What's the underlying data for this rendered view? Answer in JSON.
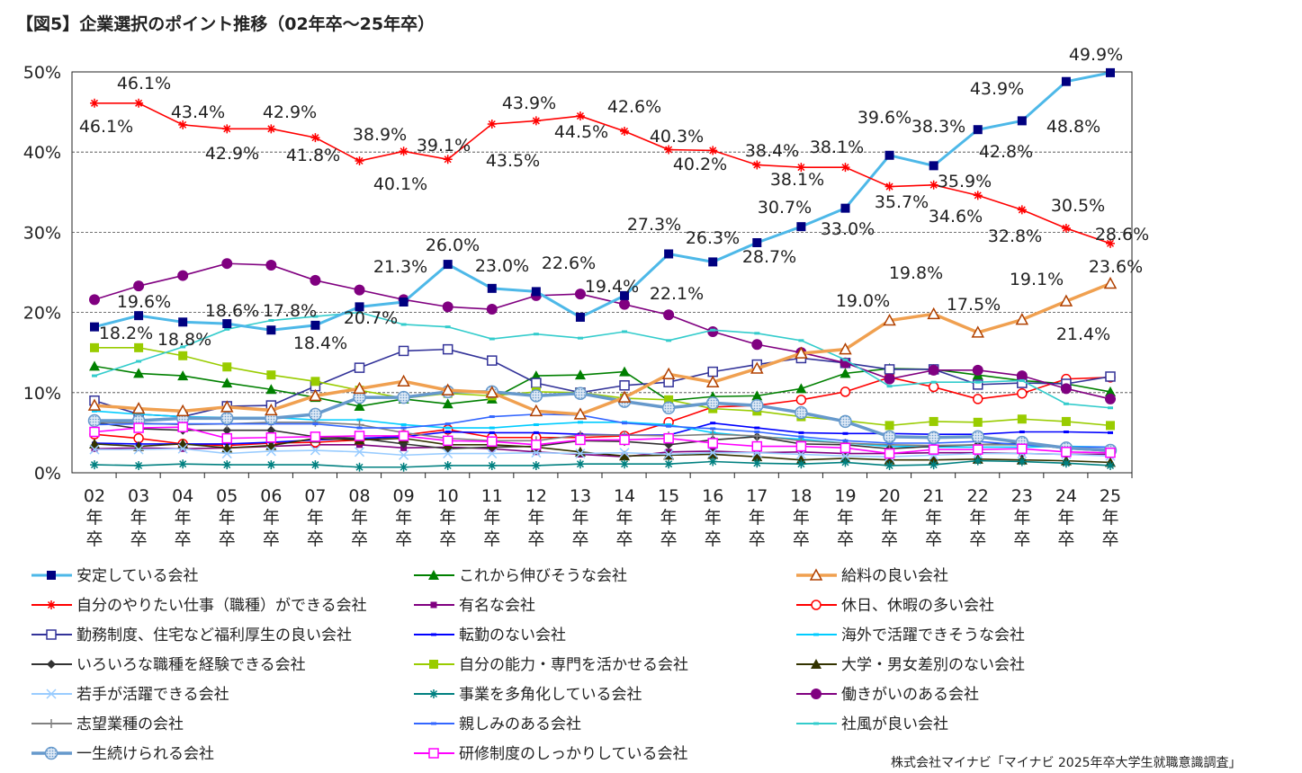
{
  "title": "【図5】企業選択のポイント推移（02年卒～25年卒）",
  "source": "株式会社マイナビ「マイナビ 2025年卒大学生就職意識調査」",
  "chart_data": {
    "type": "line",
    "title": "【図5】企業選択のポイント推移（02年卒～25年卒）",
    "categories": [
      "02",
      "03",
      "04",
      "05",
      "06",
      "07",
      "08",
      "09",
      "10",
      "11",
      "12",
      "13",
      "14",
      "15",
      "16",
      "17",
      "18",
      "19",
      "20",
      "21",
      "22",
      "23",
      "24",
      "25"
    ],
    "category_suffix": [
      "年",
      "卒"
    ],
    "ylim": [
      0,
      50
    ],
    "yticks": [
      "0%",
      "10%",
      "20%",
      "30%",
      "40%",
      "50%"
    ],
    "grid": "horizontal dashed",
    "legend": "bottom",
    "series": [
      {
        "name": "安定している会社",
        "color": "#4db8e8",
        "marker_color": "#000080",
        "marker": "square-filled",
        "labels": "all",
        "values": [
          18.2,
          19.6,
          18.8,
          18.6,
          17.8,
          18.4,
          20.7,
          21.3,
          26.0,
          23.0,
          22.6,
          19.4,
          22.1,
          27.3,
          26.3,
          28.7,
          30.7,
          33.0,
          39.6,
          38.3,
          42.8,
          43.9,
          48.8,
          49.9
        ]
      },
      {
        "name": "これから伸びそうな会社",
        "color": "#008000",
        "marker_color": "#008000",
        "marker": "triangle-filled",
        "values": [
          13.3,
          12.4,
          12.1,
          11.2,
          10.4,
          9.4,
          8.3,
          9.2,
          8.6,
          9.2,
          12.1,
          12.2,
          12.6,
          9.0,
          9.5,
          9.6,
          10.5,
          12.4,
          13.0,
          12.9,
          12.2,
          11.5,
          11.1,
          10.1
        ]
      },
      {
        "name": "給料の良い会社",
        "color": "#f0a050",
        "marker_color": "#b04000",
        "marker": "triangle-open",
        "labels": "20-25",
        "values": [
          8.4,
          8.0,
          7.7,
          8.2,
          7.8,
          9.6,
          10.5,
          11.4,
          10.3,
          10.0,
          7.7,
          7.3,
          9.4,
          12.3,
          11.3,
          13.0,
          14.9,
          15.4,
          19.0,
          19.8,
          17.5,
          19.1,
          21.4,
          23.6
        ]
      },
      {
        "name": "自分のやりたい仕事（職種）ができる会社",
        "color": "#ff0000",
        "marker_color": "#ff0000",
        "marker": "star",
        "labels": "all",
        "values": [
          46.1,
          46.1,
          43.4,
          42.9,
          42.9,
          41.8,
          38.9,
          40.1,
          39.1,
          43.5,
          43.9,
          44.5,
          42.6,
          40.3,
          40.2,
          38.4,
          38.1,
          38.1,
          35.7,
          35.9,
          34.6,
          32.8,
          30.5,
          28.6
        ]
      },
      {
        "name": "有名な会社",
        "color": "#800080",
        "marker_color": "#800080",
        "marker": "square-small",
        "values": [
          3.0,
          3.1,
          3.0,
          3.1,
          3.3,
          3.5,
          3.5,
          3.1,
          3.2,
          3.0,
          2.6,
          2.3,
          2.0,
          2.6,
          2.7,
          2.5,
          2.6,
          2.4,
          2.4,
          2.5,
          2.5,
          2.4,
          2.3,
          2.3
        ]
      },
      {
        "name": "休日、休暇の多い会社",
        "color": "#ff0000",
        "marker_color": "#ff0000",
        "marker": "circle-open",
        "values": [
          4.8,
          4.3,
          3.6,
          3.4,
          3.7,
          3.8,
          4.1,
          4.7,
          5.4,
          4.4,
          4.4,
          4.4,
          4.6,
          6.3,
          8.2,
          8.4,
          9.1,
          10.1,
          11.9,
          10.7,
          9.2,
          9.9,
          11.7,
          11.9
        ]
      },
      {
        "name": "勤務制度、住宅など福利厚生の良い会社",
        "color": "#333399",
        "marker_color": "#333399",
        "marker": "square-open",
        "values": [
          9.0,
          7.3,
          7.0,
          8.3,
          8.4,
          10.8,
          13.1,
          15.2,
          15.4,
          14.0,
          11.2,
          10.0,
          10.9,
          11.3,
          12.6,
          13.5,
          14.3,
          13.7,
          12.9,
          12.9,
          11.0,
          11.2,
          11.1,
          12.0
        ]
      },
      {
        "name": "転勤のない会社",
        "color": "#0000ff",
        "marker_color": "#0000ff",
        "marker": "dash",
        "values": [
          3.7,
          3.6,
          3.6,
          3.6,
          3.8,
          4.1,
          4.3,
          4.5,
          5.1,
          5.0,
          5.0,
          4.8,
          4.7,
          4.7,
          6.2,
          5.6,
          5.0,
          4.9,
          4.9,
          4.8,
          4.8,
          5.1,
          5.1,
          5.0
        ]
      },
      {
        "name": "海外で活躍できそうな会社",
        "color": "#00ccff",
        "marker_color": "#00ccff",
        "marker": "dash",
        "values": [
          7.7,
          7.3,
          7.0,
          6.9,
          6.9,
          6.6,
          6.6,
          6.0,
          5.6,
          5.6,
          6.0,
          6.3,
          6.3,
          6.0,
          5.0,
          4.5,
          4.2,
          3.7,
          3.3,
          3.2,
          3.2,
          3.2,
          3.3,
          3.2
        ]
      },
      {
        "name": "いろいろな職種を経験できる会社",
        "color": "#333333",
        "marker_color": "#333333",
        "marker": "diamond",
        "values": [
          6.3,
          5.5,
          5.3,
          5.3,
          5.3,
          4.5,
          4.3,
          3.6,
          3.0,
          3.2,
          3.3,
          4.0,
          3.9,
          3.5,
          4.1,
          4.5,
          3.6,
          3.5,
          3.0,
          3.3,
          3.5,
          3.7,
          3.0,
          2.7
        ]
      },
      {
        "name": "自分の能力・専門を活かせる会社",
        "color": "#99cc00",
        "marker_color": "#99cc00",
        "marker": "square-filled",
        "values": [
          15.6,
          15.6,
          14.6,
          13.2,
          12.2,
          11.4,
          10.3,
          9.3,
          9.9,
          9.6,
          10.1,
          10.0,
          9.3,
          9.1,
          8.0,
          7.7,
          7.0,
          6.5,
          5.9,
          6.4,
          6.3,
          6.7,
          6.4,
          5.9
        ]
      },
      {
        "name": "大学・男女差別のない会社",
        "color": "#333300",
        "marker_color": "#333300",
        "marker": "triangle-filled",
        "values": [
          3.6,
          3.3,
          3.6,
          3.1,
          3.4,
          4.3,
          4.1,
          4.3,
          3.5,
          3.5,
          3.2,
          2.6,
          2.1,
          2.2,
          2.3,
          2.0,
          1.6,
          1.8,
          1.6,
          1.6,
          1.7,
          1.6,
          1.5,
          1.3
        ]
      },
      {
        "name": "若手が活躍できる会社",
        "color": "#99ccff",
        "marker_color": "#99ccff",
        "marker": "x",
        "values": [
          2.9,
          2.9,
          3.0,
          2.4,
          2.7,
          2.8,
          2.6,
          2.2,
          2.4,
          2.4,
          2.5,
          2.4,
          2.5,
          2.3,
          2.5,
          2.5,
          2.3,
          2.1,
          2.0,
          2.2,
          2.4,
          2.4,
          2.3,
          2.1
        ]
      },
      {
        "name": "事業を多角化している会社",
        "color": "#008080",
        "marker_color": "#008080",
        "marker": "star",
        "values": [
          1.0,
          0.9,
          1.1,
          1.0,
          1.0,
          1.0,
          0.7,
          0.7,
          0.9,
          0.9,
          0.9,
          1.1,
          1.1,
          1.1,
          1.4,
          1.2,
          1.1,
          1.3,
          0.9,
          1.0,
          1.5,
          1.4,
          1.2,
          0.9
        ]
      },
      {
        "name": "働きがいのある会社",
        "color": "#800080",
        "marker_color": "#800080",
        "marker": "circle-filled",
        "values": [
          21.6,
          23.3,
          24.6,
          26.1,
          25.9,
          24.0,
          22.8,
          21.6,
          20.7,
          20.4,
          22.1,
          22.3,
          21.0,
          19.7,
          17.6,
          16.0,
          15.0,
          13.7,
          11.7,
          12.8,
          12.8,
          12.1,
          10.5,
          9.2
        ]
      },
      {
        "name": "志望業種の会社",
        "color": "#808080",
        "marker_color": "#808080",
        "marker": "plus",
        "values": [
          6.3,
          6.2,
          6.0,
          6.1,
          6.3,
          6.3,
          6.0,
          5.0,
          4.3,
          4.0,
          4.0,
          4.7,
          4.7,
          4.6,
          4.8,
          4.6,
          4.0,
          3.7,
          3.5,
          3.4,
          3.5,
          3.5,
          3.1,
          2.9
        ]
      },
      {
        "name": "親しみのある会社",
        "color": "#3366ff",
        "marker_color": "#3366ff",
        "marker": "dash",
        "values": [
          6.0,
          6.1,
          6.1,
          6.1,
          6.1,
          6.1,
          5.6,
          5.6,
          6.1,
          7.0,
          7.3,
          7.2,
          6.2,
          5.8,
          5.5,
          5.1,
          4.5,
          4.0,
          3.7,
          3.7,
          3.9,
          3.5,
          3.2,
          3.2
        ]
      },
      {
        "name": "社風が良い会社",
        "color": "#33cccc",
        "marker_color": "#33cccc",
        "marker": "dash",
        "values": [
          12.1,
          13.9,
          15.7,
          17.9,
          19.0,
          19.5,
          20.0,
          18.5,
          18.2,
          16.7,
          17.3,
          16.8,
          17.6,
          16.5,
          17.8,
          17.4,
          16.5,
          14.1,
          10.8,
          11.3,
          11.3,
          11.5,
          8.6,
          8.1
        ]
      },
      {
        "name": "一生続けられる会社",
        "color": "#6699cc",
        "marker_color": "#6699cc",
        "marker": "circle-pattern",
        "values": [
          6.5,
          6.5,
          6.8,
          6.8,
          6.8,
          7.3,
          9.4,
          9.4,
          10.1,
          10.1,
          9.6,
          9.9,
          8.9,
          8.1,
          8.7,
          8.4,
          7.5,
          6.4,
          4.5,
          4.4,
          4.5,
          3.8,
          3.1,
          2.8
        ]
      },
      {
        "name": "研修制度のしっかりしている会社",
        "color": "#ff00ff",
        "marker_color": "#ff00ff",
        "marker": "square-open",
        "values": [
          5.1,
          5.6,
          5.7,
          4.3,
          4.4,
          4.5,
          4.6,
          4.6,
          4.0,
          3.9,
          3.5,
          4.1,
          4.1,
          4.3,
          3.7,
          3.3,
          3.3,
          3.1,
          2.4,
          2.9,
          2.9,
          3.0,
          2.6,
          2.5
        ]
      }
    ]
  }
}
